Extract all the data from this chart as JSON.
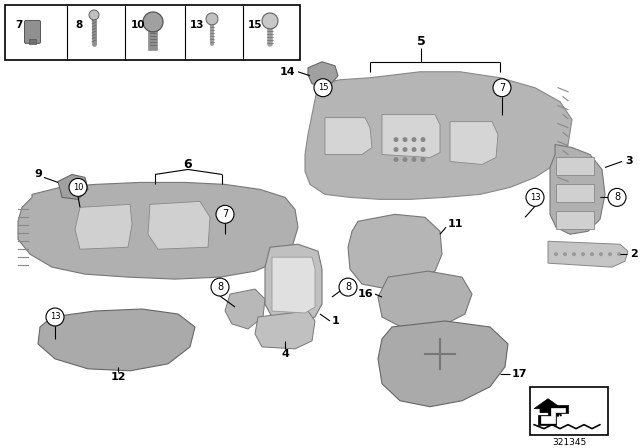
{
  "bg_color": "#ffffff",
  "diagram_number": "321345",
  "gray1": "#b0b0b0",
  "gray2": "#c8c8c8",
  "gray3": "#989898",
  "dark_gray": "#606060",
  "line_color": "#000000",
  "box_border": "#000000"
}
